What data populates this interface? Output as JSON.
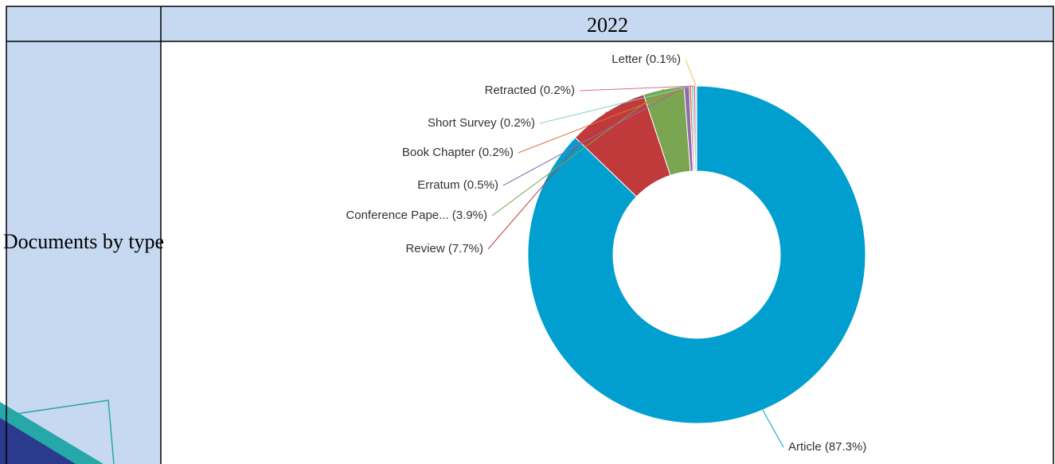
{
  "table": {
    "header": "2022",
    "row_label": "Documents by type"
  },
  "chart_data": {
    "type": "donut",
    "categories": [
      "Article (87.3%)",
      "Review (7.7%)",
      "Conference Pape... (3.9%)",
      "Erratum (0.5%)",
      "Book Chapter (0.2%)",
      "Short Survey (0.2%)",
      "Retracted (0.2%)",
      "Letter (0.1%)"
    ],
    "values": [
      87.3,
      7.7,
      3.9,
      0.5,
      0.2,
      0.2,
      0.2,
      0.1
    ],
    "colors": [
      "#009fd0",
      "#c0393b",
      "#7aa651",
      "#8e6bb0",
      "#e0703a",
      "#7fd6d0",
      "#d96aa0",
      "#e8c84a"
    ]
  }
}
